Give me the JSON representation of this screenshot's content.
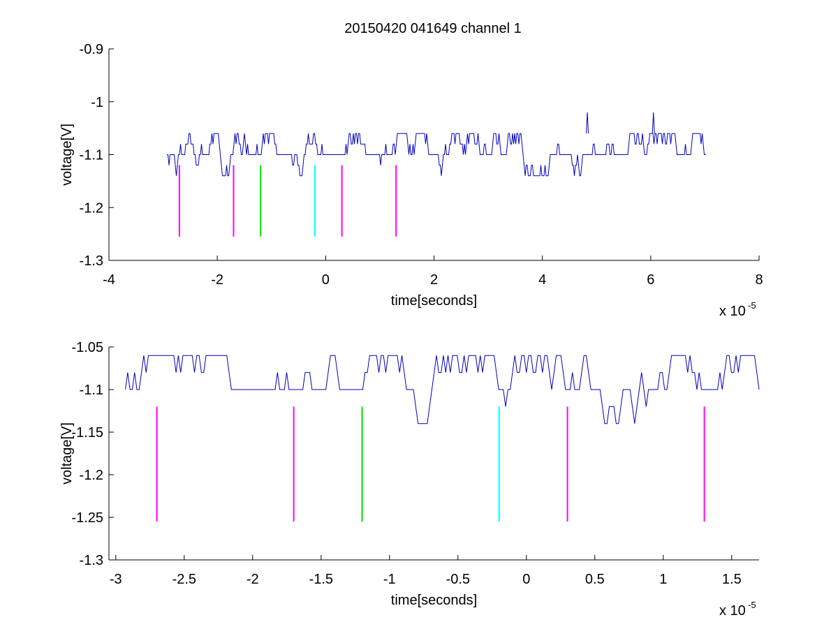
{
  "figure": {
    "title": "20150420 041649 channel 1"
  },
  "chart_data": [
    {
      "type": "line",
      "title": "20150420 041649 channel 1",
      "xlabel": "time[seconds]",
      "ylabel": "voltage[V]",
      "x_multiplier_base": "x 10",
      "x_multiplier_exp": "-5",
      "xlim": [
        -4,
        8
      ],
      "ylim": [
        -1.3,
        -0.9
      ],
      "xticks": [
        -4,
        -2,
        0,
        2,
        4,
        6,
        8
      ],
      "xtick_labels": [
        "-4",
        "-2",
        "0",
        "2",
        "4",
        "6",
        "8"
      ],
      "yticks": [
        -1.3,
        -1.2,
        -1.1,
        -1.0,
        -0.9
      ],
      "ytick_labels": [
        "-1.3",
        "-1.2",
        "-1.1",
        "-1",
        "-0.9"
      ],
      "grid": false,
      "series": [
        {
          "color": "#0000bb",
          "x_start": -2.93,
          "x_end": 7.02,
          "baseline": -1.1,
          "levels": [
            -1.14,
            -1.12,
            -1.1,
            -1.08,
            -1.06
          ],
          "peaks": [
            {
              "x": 4.83,
              "y": -1.02
            },
            {
              "x": 6.05,
              "y": -1.02
            }
          ]
        }
      ],
      "markers": [
        {
          "x": -2.7,
          "color": "#ff00ff",
          "y_top": -1.12,
          "y_bottom": -1.255
        },
        {
          "x": -1.7,
          "color": "#ff00ff",
          "y_top": -1.12,
          "y_bottom": -1.255
        },
        {
          "x": -1.2,
          "color": "#00dd00",
          "y_top": -1.12,
          "y_bottom": -1.255
        },
        {
          "x": -0.2,
          "color": "#00ffff",
          "y_top": -1.12,
          "y_bottom": -1.255
        },
        {
          "x": 0.3,
          "color": "#ff00ff",
          "y_top": -1.12,
          "y_bottom": -1.255
        },
        {
          "x": 1.3,
          "color": "#ff00ff",
          "y_top": -1.12,
          "y_bottom": -1.255
        }
      ]
    },
    {
      "type": "line",
      "title": "",
      "xlabel": "time[seconds]",
      "ylabel": "voltage[V]",
      "x_multiplier_base": "x 10",
      "x_multiplier_exp": "-5",
      "xlim": [
        -3.05,
        1.7
      ],
      "ylim": [
        -1.3,
        -1.05
      ],
      "xticks": [
        -3,
        -2.5,
        -2,
        -1.5,
        -1,
        -0.5,
        0,
        0.5,
        1,
        1.5
      ],
      "xtick_labels": [
        "-3",
        "-2.5",
        "-2",
        "-1.5",
        "-1",
        "-0.5",
        "0",
        "0.5",
        "1",
        "1.5"
      ],
      "yticks": [
        -1.3,
        -1.25,
        -1.2,
        -1.15,
        -1.1,
        -1.05
      ],
      "ytick_labels": [
        "-1.3",
        "-1.25",
        "-1.2",
        "-1.15",
        "-1.1",
        "-1.05"
      ],
      "grid": false,
      "series": [
        {
          "color": "#0000bb",
          "x_start": -2.93,
          "x_end": 1.7,
          "baseline": -1.1,
          "levels": [
            -1.14,
            -1.12,
            -1.1,
            -1.08,
            -1.06
          ],
          "peaks": []
        }
      ],
      "markers": [
        {
          "x": -2.7,
          "color": "#ff00ff",
          "y_top": -1.12,
          "y_bottom": -1.255
        },
        {
          "x": -1.7,
          "color": "#ff00ff",
          "y_top": -1.12,
          "y_bottom": -1.255
        },
        {
          "x": -1.2,
          "color": "#00dd00",
          "y_top": -1.12,
          "y_bottom": -1.255
        },
        {
          "x": -0.2,
          "color": "#00ffff",
          "y_top": -1.12,
          "y_bottom": -1.255
        },
        {
          "x": 0.3,
          "color": "#ff00ff",
          "y_top": -1.12,
          "y_bottom": -1.255
        },
        {
          "x": 1.3,
          "color": "#ff00ff",
          "y_top": -1.12,
          "y_bottom": -1.255
        }
      ]
    }
  ]
}
